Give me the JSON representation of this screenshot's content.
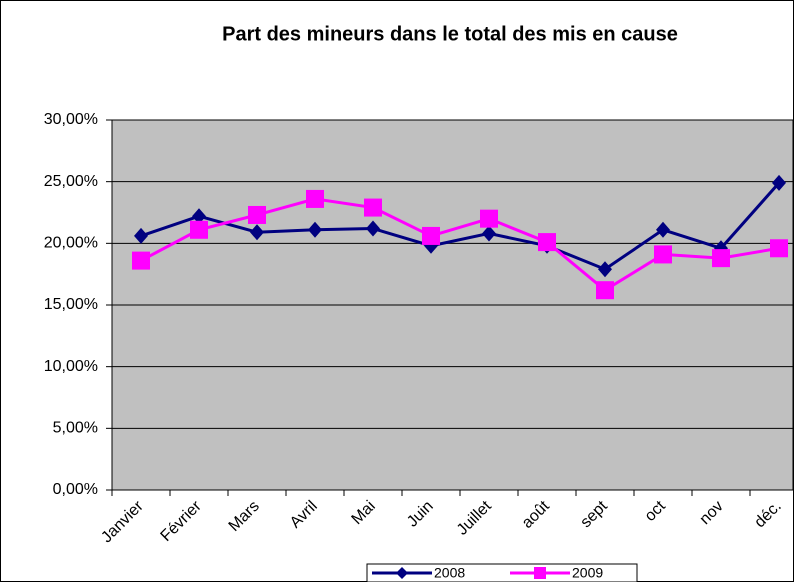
{
  "chart_data": {
    "type": "line",
    "title": "Part des mineurs dans le total des mis en cause",
    "categories": [
      "Janvier",
      "Février",
      "Mars",
      "Avril",
      "Mai",
      "Juin",
      "Juillet",
      "août",
      "sept",
      "oct",
      "nov",
      "déc."
    ],
    "series": [
      {
        "name": "2008",
        "color": "#000080",
        "marker": "diamond",
        "values": [
          20.6,
          22.2,
          20.9,
          21.1,
          21.2,
          19.8,
          20.8,
          19.8,
          17.9,
          21.1,
          19.6,
          24.9
        ]
      },
      {
        "name": "2009",
        "color": "#ff00ff",
        "marker": "square",
        "values": [
          18.6,
          21.1,
          22.3,
          23.6,
          22.9,
          20.6,
          22.0,
          20.1,
          16.2,
          19.1,
          18.8,
          19.6
        ]
      }
    ],
    "ylim": [
      0,
      30
    ],
    "yticks": [
      {
        "value": 0,
        "label": "0,00%"
      },
      {
        "value": 5,
        "label": "5,00%"
      },
      {
        "value": 10,
        "label": "10,00%"
      },
      {
        "value": 15,
        "label": "15,00%"
      },
      {
        "value": 20,
        "label": "20,00%"
      },
      {
        "value": 25,
        "label": "25,00%"
      },
      {
        "value": 30,
        "label": "30,00%"
      }
    ],
    "grid": true,
    "legend": "bottom"
  }
}
